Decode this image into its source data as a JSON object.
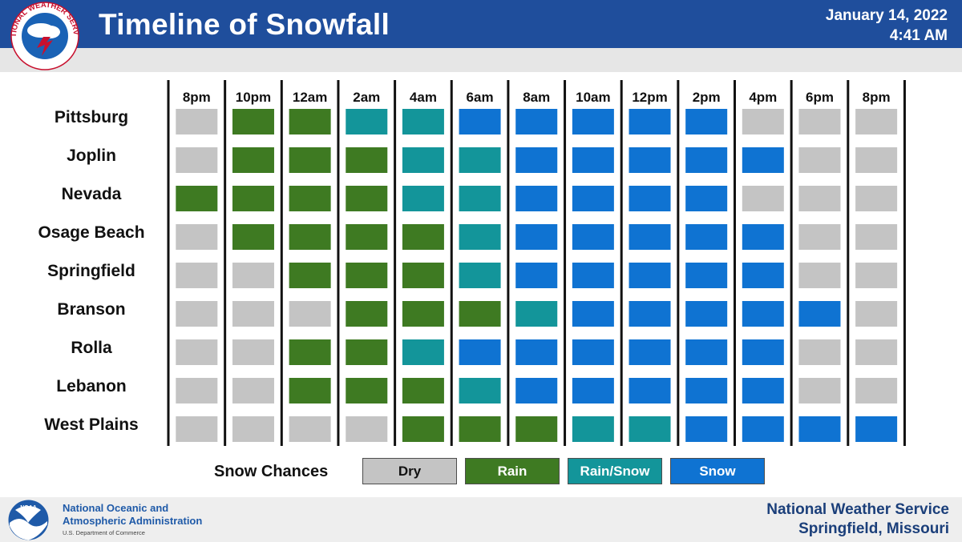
{
  "header": {
    "title": "Timeline of Snowfall",
    "date": "January 14, 2022",
    "time": "4:41 AM",
    "logo_ring_text": "NATIONAL WEATHER SERVICE"
  },
  "colors": {
    "Dry": "#c4c4c4",
    "Rain": "#3e7a22",
    "Rain/Snow": "#13959a",
    "Snow": "#0f73d2"
  },
  "chart_data": {
    "type": "heatmap",
    "title": "Timeline of Snowfall",
    "times": [
      "8pm",
      "10pm",
      "12am",
      "2am",
      "4am",
      "6am",
      "8am",
      "10am",
      "12pm",
      "2pm",
      "4pm",
      "6pm",
      "8pm"
    ],
    "locations": [
      "Pittsburg",
      "Joplin",
      "Nevada",
      "Osage Beach",
      "Springfield",
      "Branson",
      "Rolla",
      "Lebanon",
      "West Plains"
    ],
    "categories": [
      "Dry",
      "Rain",
      "Rain/Snow",
      "Snow"
    ],
    "grid": [
      [
        "Dry",
        "Rain",
        "Rain",
        "Rain/Snow",
        "Rain/Snow",
        "Snow",
        "Snow",
        "Snow",
        "Snow",
        "Snow",
        "Dry",
        "Dry",
        "Dry"
      ],
      [
        "Dry",
        "Rain",
        "Rain",
        "Rain",
        "Rain/Snow",
        "Rain/Snow",
        "Snow",
        "Snow",
        "Snow",
        "Snow",
        "Snow",
        "Dry",
        "Dry"
      ],
      [
        "Rain",
        "Rain",
        "Rain",
        "Rain",
        "Rain/Snow",
        "Rain/Snow",
        "Snow",
        "Snow",
        "Snow",
        "Snow",
        "Dry",
        "Dry",
        "Dry"
      ],
      [
        "Dry",
        "Rain",
        "Rain",
        "Rain",
        "Rain",
        "Rain/Snow",
        "Snow",
        "Snow",
        "Snow",
        "Snow",
        "Snow",
        "Dry",
        "Dry"
      ],
      [
        "Dry",
        "Dry",
        "Rain",
        "Rain",
        "Rain",
        "Rain/Snow",
        "Snow",
        "Snow",
        "Snow",
        "Snow",
        "Snow",
        "Dry",
        "Dry"
      ],
      [
        "Dry",
        "Dry",
        "Dry",
        "Rain",
        "Rain",
        "Rain",
        "Rain/Snow",
        "Snow",
        "Snow",
        "Snow",
        "Snow",
        "Snow",
        "Dry"
      ],
      [
        "Dry",
        "Dry",
        "Rain",
        "Rain",
        "Rain/Snow",
        "Snow",
        "Snow",
        "Snow",
        "Snow",
        "Snow",
        "Snow",
        "Dry",
        "Dry"
      ],
      [
        "Dry",
        "Dry",
        "Rain",
        "Rain",
        "Rain",
        "Rain/Snow",
        "Snow",
        "Snow",
        "Snow",
        "Snow",
        "Snow",
        "Dry",
        "Dry"
      ],
      [
        "Dry",
        "Dry",
        "Dry",
        "Dry",
        "Rain",
        "Rain",
        "Rain",
        "Rain/Snow",
        "Rain/Snow",
        "Snow",
        "Snow",
        "Snow",
        "Snow"
      ]
    ]
  },
  "legend": {
    "title": "Snow Chances",
    "items": [
      "Dry",
      "Rain",
      "Rain/Snow",
      "Snow"
    ]
  },
  "footer": {
    "noaa_logo_text": "NOAA",
    "noaa_line1": "National Oceanic and",
    "noaa_line2": "Atmospheric Administration",
    "noaa_dept": "U.S. Department of Commerce",
    "office_line1": "National Weather Service",
    "office_line2": "Springfield, Missouri"
  }
}
